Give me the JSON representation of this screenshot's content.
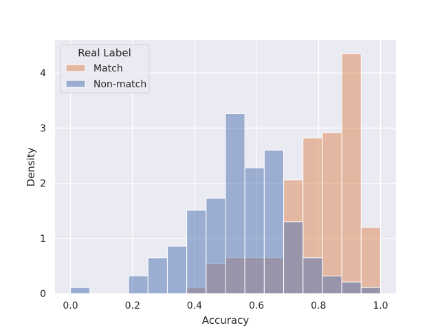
{
  "chart_data": {
    "type": "bar",
    "xlabel": "Accuracy",
    "ylabel": "Density",
    "xlim": [
      -0.05,
      1.05
    ],
    "ylim": [
      0,
      4.6
    ],
    "bin_width": 0.0625,
    "x_ticks": [
      0.0,
      0.2,
      0.4,
      0.6,
      0.8,
      1.0
    ],
    "x_tick_labels": [
      "0.0",
      "0.2",
      "0.4",
      "0.6",
      "0.8",
      "1.0"
    ],
    "y_ticks": [
      0,
      1,
      2,
      3,
      4
    ],
    "y_tick_labels": [
      "0",
      "1",
      "2",
      "3",
      "4"
    ],
    "grid": true,
    "legend": {
      "title": "Real Label",
      "placement": "top-left",
      "entries": [
        "Match",
        "Non-match"
      ]
    },
    "bin_edges": [
      0,
      0.0625,
      0.125,
      0.1875,
      0.25,
      0.3125,
      0.375,
      0.4375,
      0.5,
      0.5625,
      0.625,
      0.6875,
      0.75,
      0.8125,
      0.875,
      0.9375,
      1.0
    ],
    "series": [
      {
        "name": "Match",
        "color": "#dd8452",
        "values": [
          0,
          0,
          0,
          0,
          0,
          0,
          0.11,
          0.54,
          0.65,
          0.65,
          0.65,
          2.06,
          2.82,
          2.92,
          4.35,
          1.2
        ]
      },
      {
        "name": "Non-match",
        "color": "#4c72b0",
        "values": [
          0.11,
          0,
          0,
          0.32,
          0.65,
          0.86,
          1.51,
          1.73,
          3.26,
          2.28,
          2.6,
          1.3,
          0.65,
          0.32,
          0.21,
          0.11
        ]
      }
    ]
  }
}
